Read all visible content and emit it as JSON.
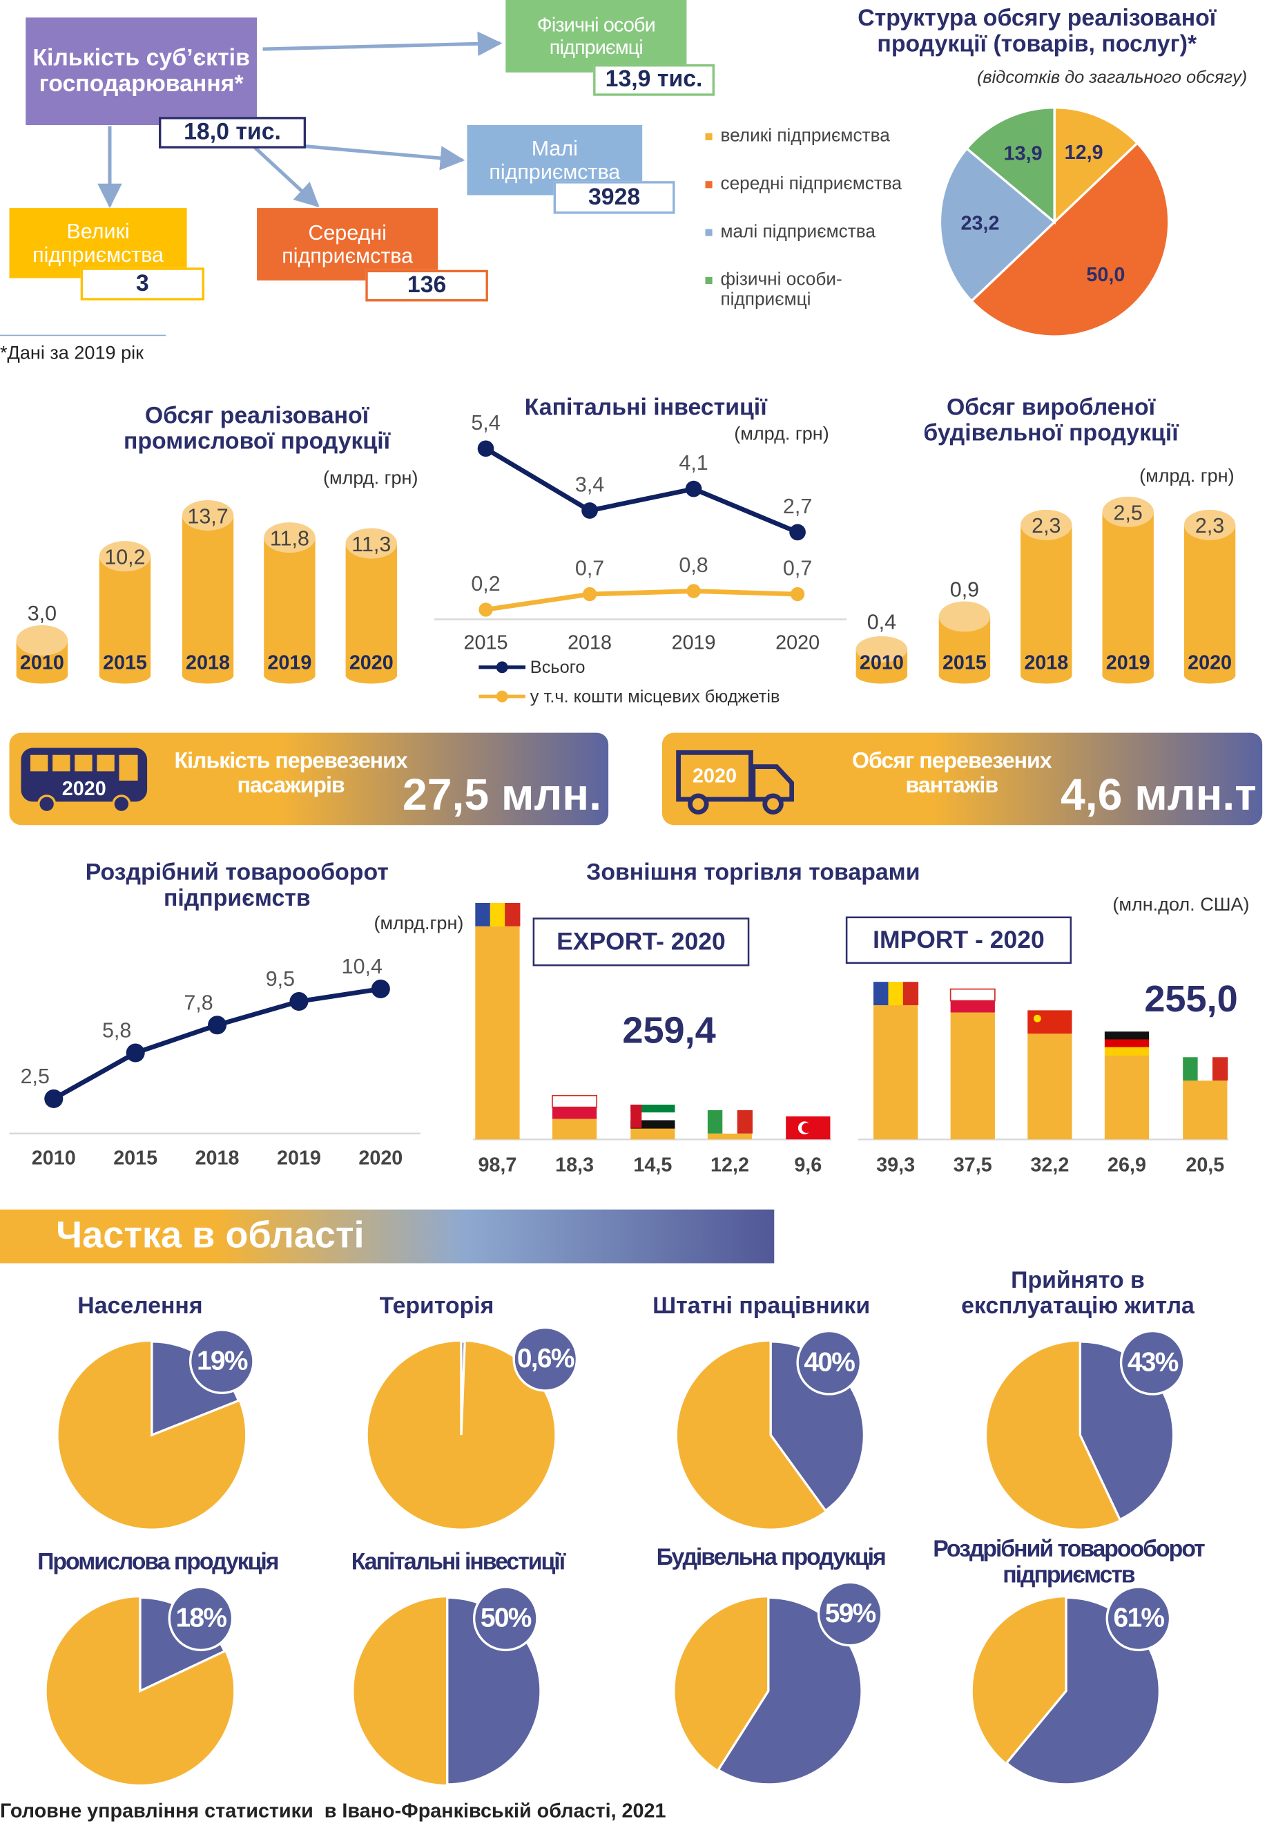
{
  "enterprises": {
    "title": "Кількість суб’єктів господарювання*",
    "total": "18,0 тис.",
    "individuals": {
      "label": "Фізичні особи підприємці",
      "value": "13,9 тис."
    },
    "small": {
      "label": "Малі підприємства",
      "value": "3928"
    },
    "large": {
      "label": "Великі підприємства",
      "value": "3"
    },
    "medium": {
      "label": "Середні підприємства",
      "value": "136"
    },
    "note": "*Дані за 2019 рік"
  },
  "transport": [
    {
      "year": "2020",
      "label": "Кількість перевезених пасажирів",
      "value": "27,5 млн."
    },
    {
      "year": "2020",
      "label": "Обсяг перевезених вантажів",
      "value": "4,6 млн.т"
    }
  ],
  "share_title": "Частка в області",
  "footer": "Головне управління статистики  в Івано-Франківській області, 2021",
  "chart_data": [
    {
      "type": "pie",
      "title": "Структура обсягу реалізованої продукції (товарів, послуг)*",
      "subtitle": "(відсотків до загального обсягу)",
      "categories": [
        "великі підприємства",
        "середні підприємства",
        "малі підприємства",
        "фізичні особи-підприємці"
      ],
      "values": [
        12.9,
        50.0,
        23.2,
        13.9
      ],
      "value_labels": [
        "12,9",
        "50,0",
        "23,2",
        "13,9"
      ],
      "colors": [
        "#f5b335",
        "#ef6c2e",
        "#8fb0d4",
        "#6db36a"
      ],
      "legend": "left"
    },
    {
      "type": "bar",
      "title": "Обсяг реалізованої промислової продукції",
      "subtitle": "(млрд. грн)",
      "categories": [
        "2010",
        "2015",
        "2018",
        "2019",
        "2020"
      ],
      "values": [
        3.0,
        10.2,
        13.7,
        11.8,
        11.3
      ],
      "value_labels": [
        "3,0",
        "10,2",
        "13,7",
        "11,8",
        "11,3"
      ],
      "color": "#f5b335"
    },
    {
      "type": "line",
      "title": "Капітальні інвестиції",
      "subtitle": "(млрд. грн)",
      "categories": [
        "2015",
        "2018",
        "2019",
        "2020"
      ],
      "series": [
        {
          "name": "Всього",
          "color": "#0f2160",
          "values": [
            5.4,
            3.4,
            4.1,
            2.7
          ],
          "value_labels": [
            "5,4",
            "3,4",
            "4,1",
            "2,7"
          ]
        },
        {
          "name": "у т.ч. кошти місцевих бюджетів",
          "color": "#f5b335",
          "values": [
            0.2,
            0.7,
            0.8,
            0.7
          ],
          "value_labels": [
            "0,2",
            "0,7",
            "0,8",
            "0,7"
          ]
        }
      ],
      "legend": "bottom"
    },
    {
      "type": "bar",
      "title": "Обсяг виробленої будівельної продукції",
      "subtitle": "(млрд. грн)",
      "categories": [
        "2010",
        "2015",
        "2018",
        "2019",
        "2020"
      ],
      "values": [
        0.4,
        0.9,
        2.3,
        2.5,
        2.3
      ],
      "value_labels": [
        "0,4",
        "0,9",
        "2,3",
        "2,5",
        "2,3"
      ],
      "color": "#f5b335"
    },
    {
      "type": "line",
      "title": "Роздрібний товарооборот підприємств",
      "subtitle": "(млрд.грн)",
      "categories": [
        "2010",
        "2015",
        "2018",
        "2019",
        "2020"
      ],
      "values": [
        2.5,
        5.8,
        7.8,
        9.5,
        10.4
      ],
      "value_labels": [
        "2,5",
        "5,8",
        "7,8",
        "9,5",
        "10,4"
      ],
      "color": "#0f2160"
    },
    {
      "type": "bar",
      "title": "Зовнішня торгівля товарами",
      "subtitle": "(млн.дол. США)",
      "label": "EXPORT- 2020",
      "total": "259,4",
      "categories": [
        null,
        null,
        null,
        null,
        null
      ],
      "values": [
        98.7,
        18.3,
        14.5,
        12.2,
        9.6
      ],
      "value_labels": [
        "98,7",
        "18,3",
        "14,5",
        "12,2",
        "9,6"
      ],
      "color": "#f5b335"
    },
    {
      "type": "bar",
      "label": "IMPORT - 2020",
      "total": "255,0",
      "categories": [
        null,
        null,
        null,
        null,
        null
      ],
      "values": [
        39.3,
        37.5,
        32.2,
        26.9,
        20.5
      ],
      "value_labels": [
        "39,3",
        "37,5",
        "32,2",
        "26,9",
        "20,5"
      ],
      "color": "#f5b335"
    },
    {
      "type": "pie",
      "title": "Населення",
      "values": [
        19
      ],
      "value_labels": [
        "19%"
      ],
      "colors": [
        "#5b64a0"
      ],
      "background_color": "#f5b335"
    },
    {
      "type": "pie",
      "title": "Територія",
      "values": [
        0.6
      ],
      "value_labels": [
        "0,6%"
      ],
      "colors": [
        "#5b64a0"
      ],
      "background_color": "#f5b335"
    },
    {
      "type": "pie",
      "title": "Штатні працівники",
      "values": [
        40
      ],
      "value_labels": [
        "40%"
      ],
      "colors": [
        "#5b64a0"
      ],
      "background_color": "#f5b335"
    },
    {
      "type": "pie",
      "title": "Прийнято в експлуатацію житла",
      "values": [
        43
      ],
      "value_labels": [
        "43%"
      ],
      "colors": [
        "#5b64a0"
      ],
      "background_color": "#f5b335"
    },
    {
      "type": "pie",
      "title": "Промислова продукція",
      "values": [
        18
      ],
      "value_labels": [
        "18%"
      ],
      "colors": [
        "#5b64a0"
      ],
      "background_color": "#f5b335"
    },
    {
      "type": "pie",
      "title": "Капітальні інвестиції",
      "values": [
        50
      ],
      "value_labels": [
        "50%"
      ],
      "colors": [
        "#5b64a0"
      ],
      "background_color": "#f5b335"
    },
    {
      "type": "pie",
      "title": "Будівельна продукція",
      "values": [
        59
      ],
      "value_labels": [
        "59%"
      ],
      "colors": [
        "#5b64a0"
      ],
      "background_color": "#f5b335"
    },
    {
      "type": "pie",
      "title": "Роздрібний товарооборот підприємств",
      "values": [
        61
      ],
      "value_labels": [
        "61%"
      ],
      "colors": [
        "#5b64a0"
      ],
      "background_color": "#f5b335"
    }
  ]
}
